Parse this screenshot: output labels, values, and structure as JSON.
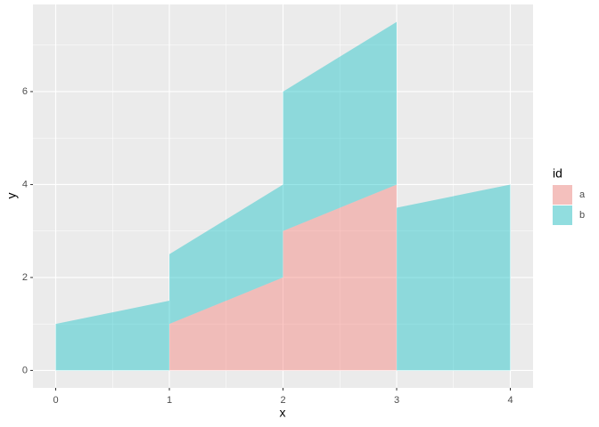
{
  "chart_data": {
    "type": "area",
    "x_label": "x",
    "y_label": "y",
    "legend_title": "id",
    "x": [
      0,
      1,
      1,
      2,
      2,
      3,
      3,
      4
    ],
    "series": [
      {
        "name": "a",
        "color": "#F8766D",
        "values": [
          null,
          null,
          1,
          2,
          3,
          4,
          null,
          null
        ]
      },
      {
        "name": "b",
        "color": "#00BFC4",
        "values": [
          1,
          1.5,
          1.5,
          2,
          3,
          3.5,
          3.5,
          4
        ]
      }
    ],
    "stacked": true,
    "opacity": 0.4,
    "xlim": [
      -0.2,
      4.2
    ],
    "xticks": [
      0,
      1,
      2,
      3,
      4
    ],
    "xminor": [
      0.5,
      1.5,
      2.5,
      3.5
    ],
    "ylim": [
      -0.375,
      7.875
    ],
    "yticks": [
      0,
      2,
      4,
      6
    ],
    "yminor": [
      1,
      3,
      5,
      7
    ],
    "grid": true,
    "legend": "right"
  }
}
